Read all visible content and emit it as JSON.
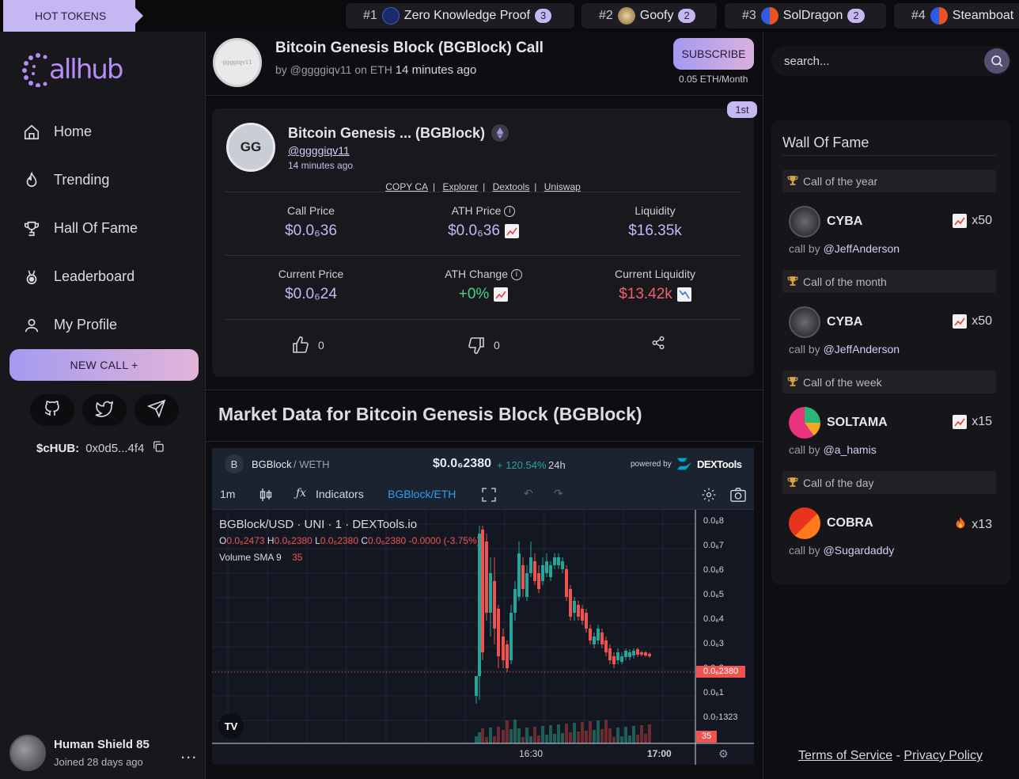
{
  "hot_tokens": {
    "label": "HOT TOKENS",
    "items": [
      {
        "rank": "#1",
        "name": "Zero Knowledge Proof",
        "count": "3",
        "icon": "zkp-token-icon",
        "color": "#1d2a6a"
      },
      {
        "rank": "#2",
        "name": "Goofy",
        "count": "2",
        "icon": "goofy-token-icon",
        "color": "#c9a66b"
      },
      {
        "rank": "#3",
        "name": "SolDragon",
        "count": "2",
        "icon": "soldragon-token-icon",
        "color": "#e8531f"
      },
      {
        "rank": "#4",
        "name": "Steamboat",
        "count": "",
        "icon": "steamboat-token-icon",
        "color": "#e8531f"
      }
    ]
  },
  "sidebar": {
    "logo": "Callhub",
    "nav": [
      {
        "label": "Home",
        "icon": "home-icon"
      },
      {
        "label": "Trending",
        "icon": "flame-icon"
      },
      {
        "label": "Hall Of Fame",
        "icon": "trophy-icon"
      },
      {
        "label": "Leaderboard",
        "icon": "medal-icon"
      },
      {
        "label": "My Profile",
        "icon": "user-icon"
      }
    ],
    "new_call": "NEW CALL +",
    "socials": [
      "github-icon",
      "twitter-icon",
      "telegram-icon"
    ],
    "chub_label": "$cHUB:",
    "chub_address": "0x0d5...4f4",
    "user": {
      "name": "Human Shield 85",
      "joined": "Joined 28 days ago",
      "more": "..."
    }
  },
  "header": {
    "avatar_text": "ggggiqv11",
    "title": "Bitcoin Genesis Block (BGBlock) Call",
    "by": "by @ggggiqv11 on ETH",
    "time": "14 minutes ago",
    "subscribe": "SUBSCRIBE",
    "price": "0.05 ETH/Month"
  },
  "call_card": {
    "badge": "1st",
    "avatar": "GG",
    "name": "Bitcoin Genesis ... (BGBlock)",
    "handle": "@ggggiqv11",
    "ago": "14 minutes ago",
    "links": [
      "COPY CA",
      "Explorer",
      "Dextools",
      "Uniswap"
    ],
    "stats": {
      "call_price_label": "Call Price",
      "call_price": "$0.0₆36",
      "ath_price_label": "ATH Price",
      "ath_price": "$0.0₆36",
      "liquidity_label": "Liquidity",
      "liquidity": "$16.35k",
      "current_price_label": "Current Price",
      "current_price": "$0.0₆24",
      "ath_change_label": "ATH Change",
      "ath_change": "+0%",
      "current_liquidity_label": "Current Liquidity",
      "current_liquidity": "$13.42k"
    },
    "likes": "0",
    "dislikes": "0"
  },
  "market": {
    "title": "Market Data for Bitcoin Genesis Block (BGBlock)",
    "pair_letter": "B",
    "pair": "BGBlock",
    "quote": "/ WETH",
    "price": "$0.0₆2380",
    "change": "+ 120.54%",
    "change_period": "24h",
    "powered_by": "powered by",
    "brand": "DEXTools",
    "toolbar": {
      "interval": "1m",
      "indicators": "Indicators",
      "symbol": "BGBlock/ETH"
    },
    "legend_title": "BGBlock/USD · UNI · 1 · DEXTools.io",
    "ohlc": {
      "o": "0.0₆2473",
      "h": "0.0₆2380",
      "l": "0.0₆2380",
      "c": "0.0₆2380",
      "chg": "-0.0000 (-3.75%)"
    },
    "volume_label": "Volume SMA 9",
    "volume_value": "35",
    "y_ticks": [
      "0.0₆8",
      "0.0₆7",
      "0.0₆6",
      "0.0₆5",
      "0.0₆4",
      "0.0₆3",
      "0.0₆2",
      "0.0₆1",
      "0.0₇1323"
    ],
    "price_tag": "0.0₆2380",
    "vol_tag": "35",
    "x_ticks": [
      "16:30",
      "17:00"
    ]
  },
  "search": {
    "placeholder": "search..."
  },
  "wall_of_fame": {
    "title": "Wall Of Fame",
    "sections": [
      {
        "label": "Call of the year",
        "token": "CYBA",
        "mult": "x50",
        "by_prefix": "call by",
        "by": "@JeffAnderson",
        "mult_icon": "chart-up-icon",
        "token_color": "#3a3a40"
      },
      {
        "label": "Call of the month",
        "token": "CYBA",
        "mult": "x50",
        "by_prefix": "call by",
        "by": "@JeffAnderson",
        "mult_icon": "chart-up-icon",
        "token_color": "#3a3a40"
      },
      {
        "label": "Call of the week",
        "token": "SOLTAMA",
        "mult": "x15",
        "by_prefix": "call by",
        "by": "@a_hamis",
        "mult_icon": "chart-up-icon",
        "token_color": "#e84b8a"
      },
      {
        "label": "Call of the day",
        "token": "COBRA",
        "mult": "x13",
        "by_prefix": "call by",
        "by": "@Sugardaddy",
        "mult_icon": "fire-icon",
        "token_color": "#e8331f"
      }
    ]
  },
  "footer": {
    "terms": "Terms of Service",
    "sep": "-",
    "privacy": "Privacy Policy"
  },
  "colors": {
    "accent": "#c5b8f2",
    "up": "#26a69a",
    "down": "#ef5350",
    "green": "#49d38a",
    "red": "#f15f6a"
  }
}
